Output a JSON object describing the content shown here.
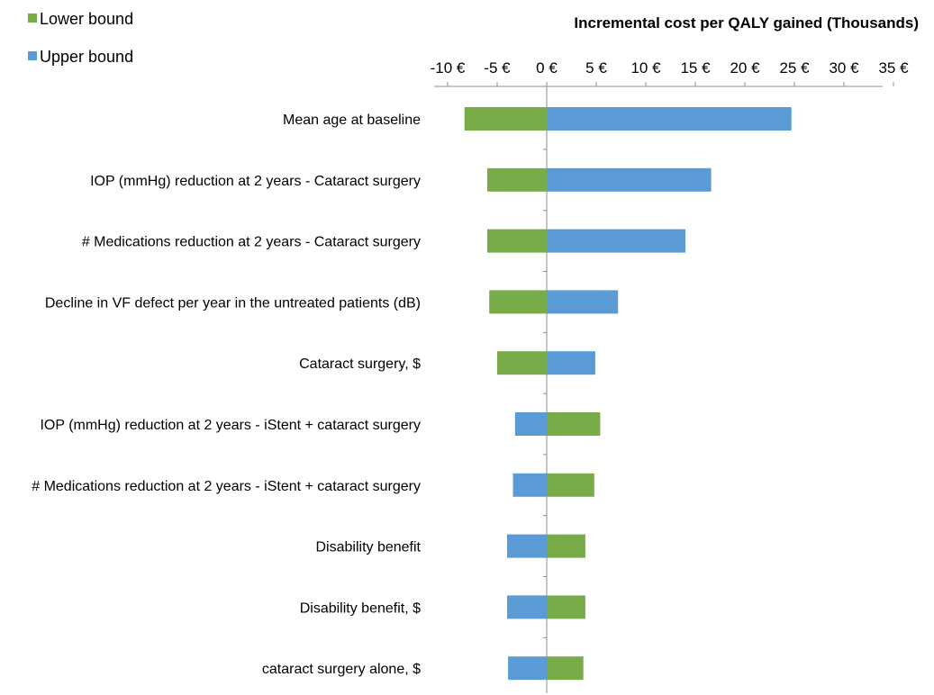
{
  "chart_data": {
    "type": "bar",
    "orientation": "horizontal",
    "chart_style": "tornado",
    "title": "Incremental cost per QALY gained (Thousands)",
    "xlabel": "",
    "ylabel": "",
    "xlim": [
      -10,
      35
    ],
    "x_ticks": [
      -10,
      -5,
      0,
      5,
      10,
      15,
      20,
      25,
      30,
      35
    ],
    "x_tick_labels": [
      "-10 €",
      "-5 €",
      "0 €",
      "5 €",
      "10 €",
      "15 €",
      "20 €",
      "25 €",
      "30 €",
      "35 €"
    ],
    "x_axis_position": "top",
    "grid": false,
    "legend_position": "top-left",
    "categories": [
      "Mean age at baseline",
      "IOP (mmHg) reduction at 2 years - Cataract surgery",
      "# Medications reduction at 2 years - Cataract surgery",
      "Decline in VF defect per year in the untreated patients (dB)",
      "Cataract surgery, $",
      "IOP (mmHg) reduction at 2 years - iStent + cataract surgery",
      "# Medications reduction at 2 years - iStent + cataract surgery",
      "Disability benefit",
      "Disability benefit, $",
      "cataract surgery alone, $"
    ],
    "series": [
      {
        "name": "Lower bound",
        "color": "#77ac48",
        "values": [
          -8.3,
          -6.0,
          -6.0,
          -5.8,
          -5.0,
          5.4,
          4.8,
          3.9,
          3.9,
          3.7
        ]
      },
      {
        "name": "Upper bound",
        "color": "#5b9bd5",
        "values": [
          24.7,
          16.6,
          14.0,
          7.2,
          4.9,
          -3.2,
          -3.4,
          -4.0,
          -4.0,
          -3.9
        ]
      }
    ]
  }
}
